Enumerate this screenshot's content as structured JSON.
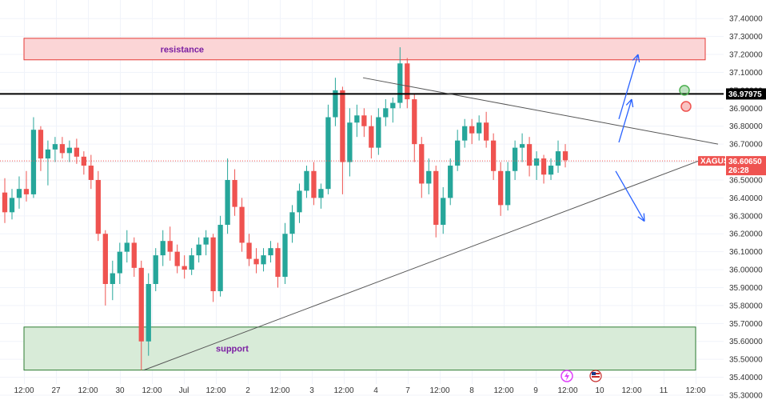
{
  "chart_data": {
    "type": "candlestick",
    "symbol": "XAGUSD",
    "ylim": [
      35.3,
      37.45
    ],
    "y_ticks": [
      "37.40000",
      "37.30000",
      "37.20000",
      "37.10000",
      "37.00000",
      "36.90000",
      "36.80000",
      "36.70000",
      "36.60000",
      "36.50000",
      "36.40000",
      "36.30000",
      "36.20000",
      "36.10000",
      "36.00000",
      "35.90000",
      "35.80000",
      "35.70000",
      "35.60000",
      "35.50000",
      "35.40000",
      "35.30000"
    ],
    "x_ticks": [
      "12:00",
      "27",
      "12:00",
      "30",
      "12:00",
      "Jul",
      "12:00",
      "2",
      "12:00",
      "3",
      "12:00",
      "4",
      "7",
      "12:00",
      "8",
      "12:00",
      "9",
      "12:00",
      "10",
      "12:00",
      "11",
      "12:00"
    ],
    "x_range": [
      0,
      22
    ],
    "price_badge": {
      "value": "36.60650",
      "countdown": "26:28",
      "label": "XAGUSD",
      "y": 36.6065
    },
    "level_badge": {
      "value": "36.97975",
      "y": 36.97975
    },
    "resistance": {
      "label": "resistance",
      "y_low": 37.17,
      "y_high": 37.29,
      "x_start": 0,
      "x_end": 21.3
    },
    "support": {
      "label": "support",
      "y_low": 35.44,
      "y_high": 35.68,
      "x_start": 0,
      "x_end": 21.0
    },
    "trendlines": [
      {
        "name": "upper-trendline",
        "x1": 10.6,
        "y1": 37.07,
        "x2": 21.7,
        "y2": 36.7
      },
      {
        "name": "lower-trendline",
        "x1": 3.75,
        "y1": 35.44,
        "x2": 21.3,
        "y2": 36.62
      }
    ],
    "arrows": [
      {
        "x1": 18.6,
        "y1": 36.84,
        "x2": 19.2,
        "y2": 37.2
      },
      {
        "x1": 18.6,
        "y1": 36.71,
        "x2": 19.0,
        "y2": 36.95
      },
      {
        "x1": 18.5,
        "y1": 36.55,
        "x2": 19.4,
        "y2": 36.27
      }
    ],
    "markers": [
      {
        "x": 20.65,
        "y": 37.0,
        "color": "#4caf50"
      },
      {
        "x": 20.7,
        "y": 36.91,
        "color": "#ef5350"
      }
    ],
    "candles": [
      {
        "o": 36.43,
        "h": 36.51,
        "l": 36.26,
        "c": 36.32
      },
      {
        "o": 36.32,
        "h": 36.45,
        "l": 36.28,
        "c": 36.4
      },
      {
        "o": 36.4,
        "h": 36.52,
        "l": 36.34,
        "c": 36.45
      },
      {
        "o": 36.45,
        "h": 36.55,
        "l": 36.38,
        "c": 36.42
      },
      {
        "o": 36.42,
        "h": 36.85,
        "l": 36.4,
        "c": 36.78
      },
      {
        "o": 36.78,
        "h": 36.8,
        "l": 36.55,
        "c": 36.62
      },
      {
        "o": 36.62,
        "h": 36.72,
        "l": 36.47,
        "c": 36.67
      },
      {
        "o": 36.67,
        "h": 36.74,
        "l": 36.6,
        "c": 36.7
      },
      {
        "o": 36.7,
        "h": 36.74,
        "l": 36.62,
        "c": 36.65
      },
      {
        "o": 36.65,
        "h": 36.72,
        "l": 36.6,
        "c": 36.68
      },
      {
        "o": 36.68,
        "h": 36.73,
        "l": 36.59,
        "c": 36.63
      },
      {
        "o": 36.63,
        "h": 36.66,
        "l": 36.53,
        "c": 36.58
      },
      {
        "o": 36.58,
        "h": 36.64,
        "l": 36.45,
        "c": 36.5
      },
      {
        "o": 36.5,
        "h": 36.55,
        "l": 36.16,
        "c": 36.2
      },
      {
        "o": 36.2,
        "h": 36.22,
        "l": 35.8,
        "c": 35.92
      },
      {
        "o": 35.92,
        "h": 36.05,
        "l": 35.83,
        "c": 35.98
      },
      {
        "o": 35.98,
        "h": 36.15,
        "l": 35.92,
        "c": 36.1
      },
      {
        "o": 36.1,
        "h": 36.22,
        "l": 36.04,
        "c": 36.15
      },
      {
        "o": 36.15,
        "h": 36.18,
        "l": 35.96,
        "c": 36.01
      },
      {
        "o": 36.01,
        "h": 36.05,
        "l": 35.44,
        "c": 35.6
      },
      {
        "o": 35.6,
        "h": 35.98,
        "l": 35.52,
        "c": 35.92
      },
      {
        "o": 35.92,
        "h": 36.12,
        "l": 35.88,
        "c": 36.08
      },
      {
        "o": 36.08,
        "h": 36.22,
        "l": 36.02,
        "c": 36.16
      },
      {
        "o": 36.16,
        "h": 36.24,
        "l": 36.05,
        "c": 36.1
      },
      {
        "o": 36.1,
        "h": 36.14,
        "l": 35.98,
        "c": 36.02
      },
      {
        "o": 36.02,
        "h": 36.08,
        "l": 35.95,
        "c": 36.0
      },
      {
        "o": 36.0,
        "h": 36.12,
        "l": 35.97,
        "c": 36.08
      },
      {
        "o": 36.08,
        "h": 36.18,
        "l": 36.04,
        "c": 36.14
      },
      {
        "o": 36.14,
        "h": 36.22,
        "l": 36.08,
        "c": 36.18
      },
      {
        "o": 36.18,
        "h": 36.2,
        "l": 35.82,
        "c": 35.88
      },
      {
        "o": 35.88,
        "h": 36.3,
        "l": 35.85,
        "c": 36.25
      },
      {
        "o": 36.25,
        "h": 36.62,
        "l": 36.2,
        "c": 36.5
      },
      {
        "o": 36.5,
        "h": 36.56,
        "l": 36.3,
        "c": 36.35
      },
      {
        "o": 36.35,
        "h": 36.4,
        "l": 36.1,
        "c": 36.15
      },
      {
        "o": 36.15,
        "h": 36.2,
        "l": 36.02,
        "c": 36.06
      },
      {
        "o": 36.06,
        "h": 36.12,
        "l": 35.98,
        "c": 36.03
      },
      {
        "o": 36.03,
        "h": 36.12,
        "l": 35.99,
        "c": 36.08
      },
      {
        "o": 36.08,
        "h": 36.16,
        "l": 36.04,
        "c": 36.12
      },
      {
        "o": 36.12,
        "h": 36.15,
        "l": 35.9,
        "c": 35.96
      },
      {
        "o": 35.96,
        "h": 36.26,
        "l": 35.92,
        "c": 36.2
      },
      {
        "o": 36.2,
        "h": 36.36,
        "l": 36.15,
        "c": 36.32
      },
      {
        "o": 36.32,
        "h": 36.48,
        "l": 36.26,
        "c": 36.44
      },
      {
        "o": 36.44,
        "h": 36.58,
        "l": 36.4,
        "c": 36.55
      },
      {
        "o": 36.55,
        "h": 36.6,
        "l": 36.36,
        "c": 36.4
      },
      {
        "o": 36.4,
        "h": 36.48,
        "l": 36.34,
        "c": 36.45
      },
      {
        "o": 36.45,
        "h": 36.92,
        "l": 36.42,
        "c": 36.85
      },
      {
        "o": 36.85,
        "h": 37.07,
        "l": 36.8,
        "c": 37.0
      },
      {
        "o": 37.0,
        "h": 37.02,
        "l": 36.42,
        "c": 36.6
      },
      {
        "o": 36.6,
        "h": 36.9,
        "l": 36.52,
        "c": 36.82
      },
      {
        "o": 36.82,
        "h": 36.92,
        "l": 36.74,
        "c": 36.86
      },
      {
        "o": 36.86,
        "h": 36.9,
        "l": 36.74,
        "c": 36.8
      },
      {
        "o": 36.8,
        "h": 36.86,
        "l": 36.62,
        "c": 36.68
      },
      {
        "o": 36.68,
        "h": 36.9,
        "l": 36.64,
        "c": 36.85
      },
      {
        "o": 36.85,
        "h": 36.95,
        "l": 36.8,
        "c": 36.9
      },
      {
        "o": 36.9,
        "h": 36.96,
        "l": 36.82,
        "c": 36.93
      },
      {
        "o": 36.93,
        "h": 37.24,
        "l": 36.9,
        "c": 37.15
      },
      {
        "o": 37.15,
        "h": 37.18,
        "l": 36.9,
        "c": 36.95
      },
      {
        "o": 36.95,
        "h": 36.98,
        "l": 36.6,
        "c": 36.7
      },
      {
        "o": 36.7,
        "h": 36.74,
        "l": 36.4,
        "c": 36.48
      },
      {
        "o": 36.48,
        "h": 36.62,
        "l": 36.42,
        "c": 36.55
      },
      {
        "o": 36.55,
        "h": 36.58,
        "l": 36.18,
        "c": 36.25
      },
      {
        "o": 36.25,
        "h": 36.46,
        "l": 36.2,
        "c": 36.4
      },
      {
        "o": 36.4,
        "h": 36.62,
        "l": 36.36,
        "c": 36.58
      },
      {
        "o": 36.58,
        "h": 36.78,
        "l": 36.55,
        "c": 36.72
      },
      {
        "o": 36.72,
        "h": 36.84,
        "l": 36.68,
        "c": 36.8
      },
      {
        "o": 36.8,
        "h": 36.84,
        "l": 36.7,
        "c": 36.76
      },
      {
        "o": 36.76,
        "h": 36.86,
        "l": 36.72,
        "c": 36.82
      },
      {
        "o": 36.82,
        "h": 36.88,
        "l": 36.68,
        "c": 36.72
      },
      {
        "o": 36.72,
        "h": 36.76,
        "l": 36.5,
        "c": 36.55
      },
      {
        "o": 36.55,
        "h": 36.6,
        "l": 36.3,
        "c": 36.36
      },
      {
        "o": 36.36,
        "h": 36.6,
        "l": 36.33,
        "c": 36.55
      },
      {
        "o": 36.55,
        "h": 36.72,
        "l": 36.5,
        "c": 36.68
      },
      {
        "o": 36.68,
        "h": 36.76,
        "l": 36.6,
        "c": 36.7
      },
      {
        "o": 36.7,
        "h": 36.74,
        "l": 36.52,
        "c": 36.58
      },
      {
        "o": 36.58,
        "h": 36.66,
        "l": 36.5,
        "c": 36.62
      },
      {
        "o": 36.62,
        "h": 36.64,
        "l": 36.48,
        "c": 36.53
      },
      {
        "o": 36.53,
        "h": 36.62,
        "l": 36.5,
        "c": 36.58
      },
      {
        "o": 36.58,
        "h": 36.72,
        "l": 36.54,
        "c": 36.66
      },
      {
        "o": 36.66,
        "h": 36.7,
        "l": 36.57,
        "c": 36.61
      }
    ],
    "colors": {
      "up": "#26a69a",
      "down": "#ef5350",
      "arrow": "#2962ff",
      "trendline": "#555555",
      "level": "#000000",
      "price_line": "#ef5350",
      "resistance_fill": "#fbd5d6",
      "resistance_stroke": "#e53935",
      "support_fill": "#d8ebd8",
      "support_stroke": "#2e7d32"
    }
  }
}
